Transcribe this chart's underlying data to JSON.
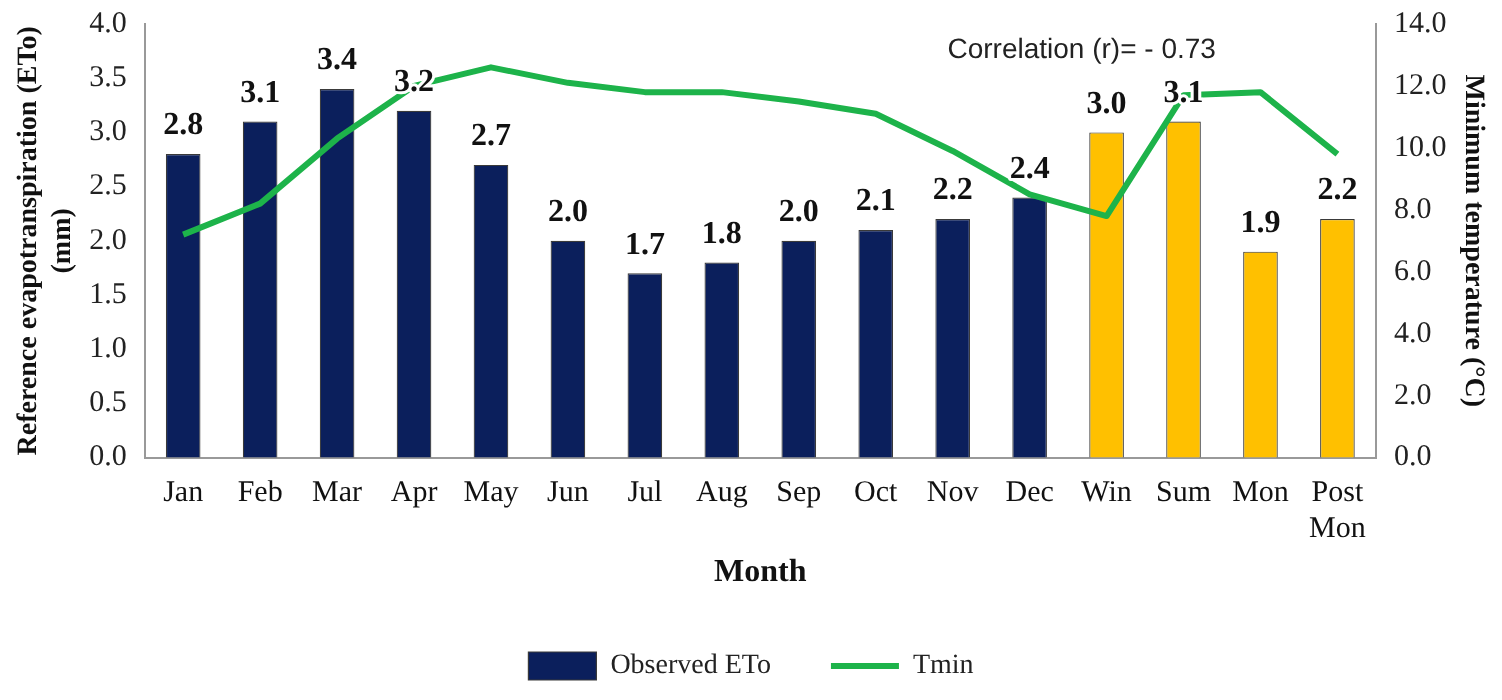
{
  "chart_data": {
    "type": "bar",
    "xlabel": "Month",
    "ylabel": "Reference evapotranspiration (ETo) (mm)",
    "y2label": "Minimum temperature (°C)",
    "categories": [
      "Jan",
      "Feb",
      "Mar",
      "Apr",
      "May",
      "Jun",
      "Jul",
      "Aug",
      "Sep",
      "Oct",
      "Nov",
      "Dec",
      "Win",
      "Sum",
      "Mon",
      "Post Mon"
    ],
    "series": [
      {
        "name": "Observed ETo",
        "colors": [
          "#0b1f5c",
          "#0b1f5c",
          "#0b1f5c",
          "#0b1f5c",
          "#0b1f5c",
          "#0b1f5c",
          "#0b1f5c",
          "#0b1f5c",
          "#0b1f5c",
          "#0b1f5c",
          "#0b1f5c",
          "#0b1f5c",
          "#ffc000",
          "#ffc000",
          "#ffc000",
          "#ffc000"
        ],
        "values": [
          2.8,
          3.1,
          3.4,
          3.2,
          2.7,
          2.0,
          1.7,
          1.8,
          2.0,
          2.1,
          2.2,
          2.4,
          3.0,
          3.1,
          1.9,
          2.2
        ],
        "value_labels": [
          "2.8",
          "3.1",
          "3.4",
          "3.2",
          "2.7",
          "2.0",
          "1.7",
          "1.8",
          "2.0",
          "2.1",
          "2.2",
          "2.4",
          "3.0",
          "3.1",
          "1.9",
          "2.2"
        ]
      },
      {
        "name": "Tmin",
        "type": "line",
        "axis": "y2",
        "color": "#1db34a",
        "values": [
          7.2,
          8.2,
          10.3,
          12.0,
          12.6,
          12.1,
          11.8,
          11.8,
          11.5,
          11.1,
          9.9,
          8.5,
          7.8,
          11.7,
          11.8,
          9.8
        ]
      }
    ],
    "ylim": [
      0,
      4
    ],
    "yticks": [
      {
        "value": 0,
        "label": "0.0"
      },
      0.5,
      {
        "value": 1,
        "label": "1.0"
      },
      1.5,
      {
        "value": 2,
        "label": "2.0"
      },
      2.5,
      {
        "value": 3,
        "label": "3.0"
      },
      3.5,
      {
        "value": 4,
        "label": "4.0"
      }
    ],
    "y2lim": [
      0,
      14
    ],
    "y2ticks": [
      {
        "value": 0,
        "label": "0.0"
      },
      {
        "value": 2,
        "label": "2.0"
      },
      {
        "value": 4,
        "label": "4.0"
      },
      {
        "value": 6,
        "label": "6.0"
      },
      {
        "value": 8,
        "label": "8.0"
      },
      {
        "value": 10,
        "label": "10.0"
      },
      {
        "value": 12,
        "label": "12.0"
      },
      {
        "value": 14,
        "label": "14.0"
      }
    ],
    "annotations": [
      "Correlation (r)= - 0.73"
    ],
    "grid": false,
    "legend": "bottom",
    "marker": "none"
  }
}
